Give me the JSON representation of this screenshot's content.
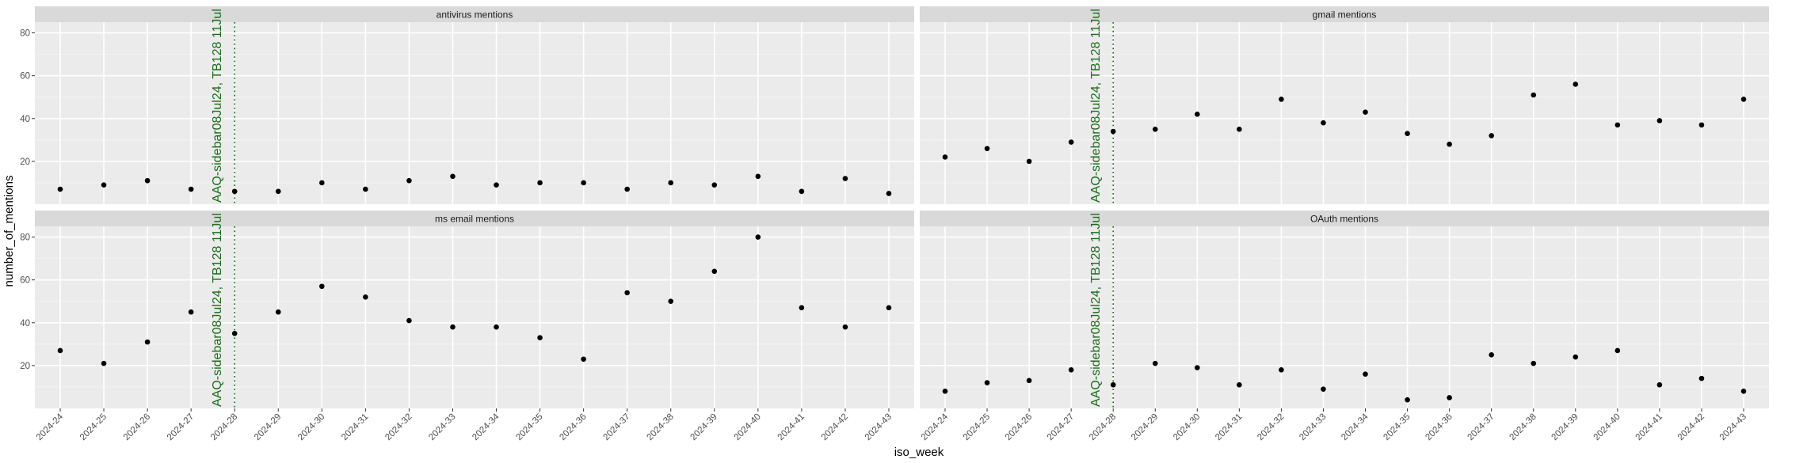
{
  "chart_data": {
    "type": "scatter",
    "facet_layout": "2x2",
    "xlabel": "iso_week",
    "ylabel": "number_of_mentions",
    "ylim": [
      0,
      85
    ],
    "y_ticks": [
      20,
      40,
      60,
      80
    ],
    "grid": true,
    "categories": [
      "2024-24",
      "2024-25",
      "2024-26",
      "2024-27",
      "2024-28",
      "2024-29",
      "2024-30",
      "2024-31",
      "2024-32",
      "2024-33",
      "2024-34",
      "2024-35",
      "2024-36",
      "2024-37",
      "2024-38",
      "2024-39",
      "2024-40",
      "2024-41",
      "2024-42",
      "2024-43"
    ],
    "vline": {
      "x": "2024-28",
      "label": "AAQ-sidebar08Jul24, TB128 11Jul",
      "color": "#1a6b1a",
      "style": "dotted"
    },
    "point_color": "#000000",
    "facets": [
      {
        "title": "antivirus mentions",
        "values": [
          7,
          9,
          11,
          7,
          6,
          6,
          10,
          7,
          11,
          13,
          9,
          10,
          10,
          7,
          10,
          9,
          13,
          6,
          12,
          5
        ]
      },
      {
        "title": "gmail mentions",
        "values": [
          22,
          26,
          20,
          29,
          34,
          35,
          42,
          35,
          49,
          38,
          43,
          33,
          28,
          32,
          51,
          56,
          37,
          39,
          37,
          49
        ]
      },
      {
        "title": "ms email mentions",
        "values": [
          27,
          21,
          31,
          45,
          35,
          45,
          57,
          52,
          41,
          38,
          38,
          33,
          23,
          54,
          50,
          64,
          80,
          47,
          38,
          47
        ]
      },
      {
        "title": "OAuth mentions",
        "values": [
          8,
          12,
          13,
          18,
          11,
          21,
          19,
          11,
          18,
          9,
          16,
          4,
          5,
          25,
          21,
          24,
          27,
          11,
          14,
          8
        ]
      }
    ]
  }
}
